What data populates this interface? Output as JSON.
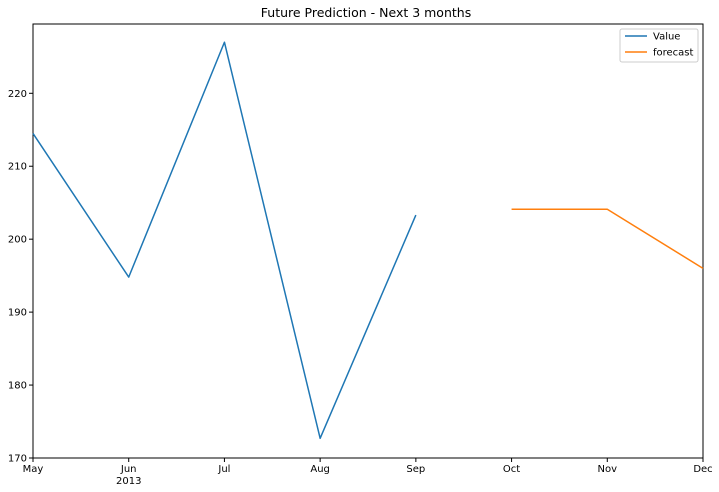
{
  "chart_data": {
    "type": "line",
    "title": "Future Prediction - Next 3 months",
    "xlabel": "",
    "ylabel": "",
    "x_ticks": [
      "May",
      "Jun",
      "Jul",
      "Aug",
      "Sep",
      "Oct",
      "Nov",
      "Dec"
    ],
    "x_year_label": {
      "tick": "Jun",
      "text": "2013"
    },
    "y_ticks": [
      170,
      180,
      190,
      200,
      210,
      220
    ],
    "ylim": [
      170,
      229.5
    ],
    "grid": false,
    "legend_position": "top-right",
    "series": [
      {
        "name": "Value",
        "color": "#1f77b4",
        "points": [
          {
            "x": "May 2013",
            "y": 214.5
          },
          {
            "x": "Jun 2013",
            "y": 194.8
          },
          {
            "x": "Jul 2013",
            "y": 227.0
          },
          {
            "x": "Aug 2013",
            "y": 172.7
          },
          {
            "x": "Sep 2013",
            "y": 203.3
          }
        ]
      },
      {
        "name": "forecast",
        "color": "#ff7f0e",
        "points": [
          {
            "x": "Oct 2013",
            "y": 204.1
          },
          {
            "x": "Nov 2013",
            "y": 204.1
          },
          {
            "x": "Dec 2013",
            "y": 196.0
          }
        ]
      }
    ]
  }
}
